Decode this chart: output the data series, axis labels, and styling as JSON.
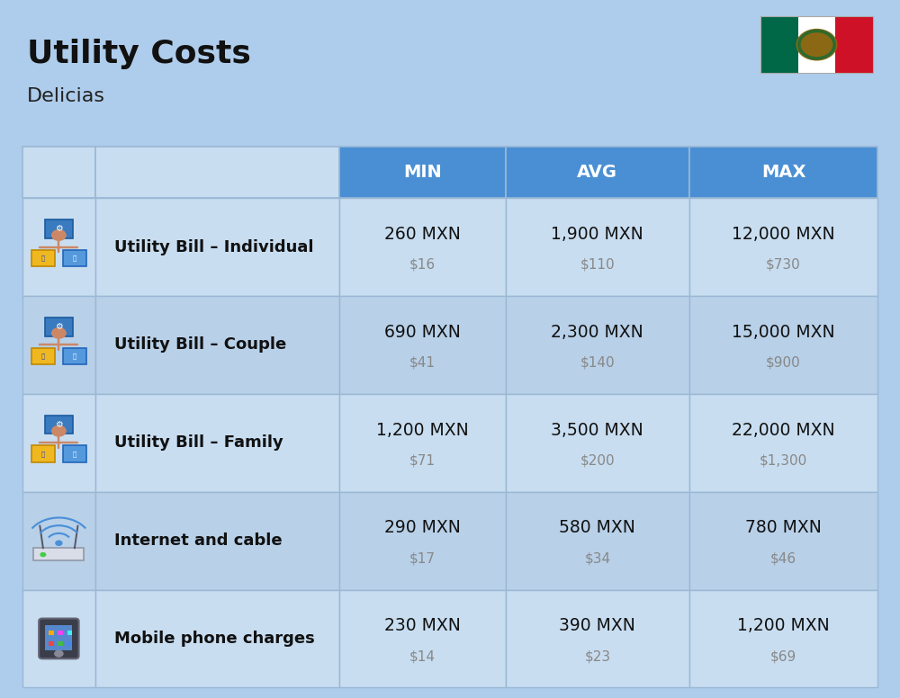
{
  "title": "Utility Costs",
  "subtitle": "Delicias",
  "bg_color": "#aecceb",
  "header_bg": "#4a8fd4",
  "header_text_color": "#ffffff",
  "row_bg_odd": "#c8ddf0",
  "row_bg_even": "#b8d0e8",
  "cell_border_color": "#9ab8d4",
  "title_color": "#111111",
  "subtitle_color": "#222222",
  "main_text_color": "#111111",
  "sub_text_color": "#888888",
  "columns": [
    "MIN",
    "AVG",
    "MAX"
  ],
  "rows": [
    {
      "label": "Utility Bill – Individual",
      "min_mxn": "260 MXN",
      "min_usd": "$16",
      "avg_mxn": "1,900 MXN",
      "avg_usd": "$110",
      "max_mxn": "12,000 MXN",
      "max_usd": "$730"
    },
    {
      "label": "Utility Bill – Couple",
      "min_mxn": "690 MXN",
      "min_usd": "$41",
      "avg_mxn": "2,300 MXN",
      "avg_usd": "$140",
      "max_mxn": "15,000 MXN",
      "max_usd": "$900"
    },
    {
      "label": "Utility Bill – Family",
      "min_mxn": "1,200 MXN",
      "min_usd": "$71",
      "avg_mxn": "3,500 MXN",
      "avg_usd": "$200",
      "max_mxn": "22,000 MXN",
      "max_usd": "$1,300"
    },
    {
      "label": "Internet and cable",
      "min_mxn": "290 MXN",
      "min_usd": "$17",
      "avg_mxn": "580 MXN",
      "avg_usd": "$34",
      "max_mxn": "780 MXN",
      "max_usd": "$46"
    },
    {
      "label": "Mobile phone charges",
      "min_mxn": "230 MXN",
      "min_usd": "$14",
      "avg_mxn": "390 MXN",
      "avg_usd": "$23",
      "max_mxn": "1,200 MXN",
      "max_usd": "$69"
    }
  ]
}
